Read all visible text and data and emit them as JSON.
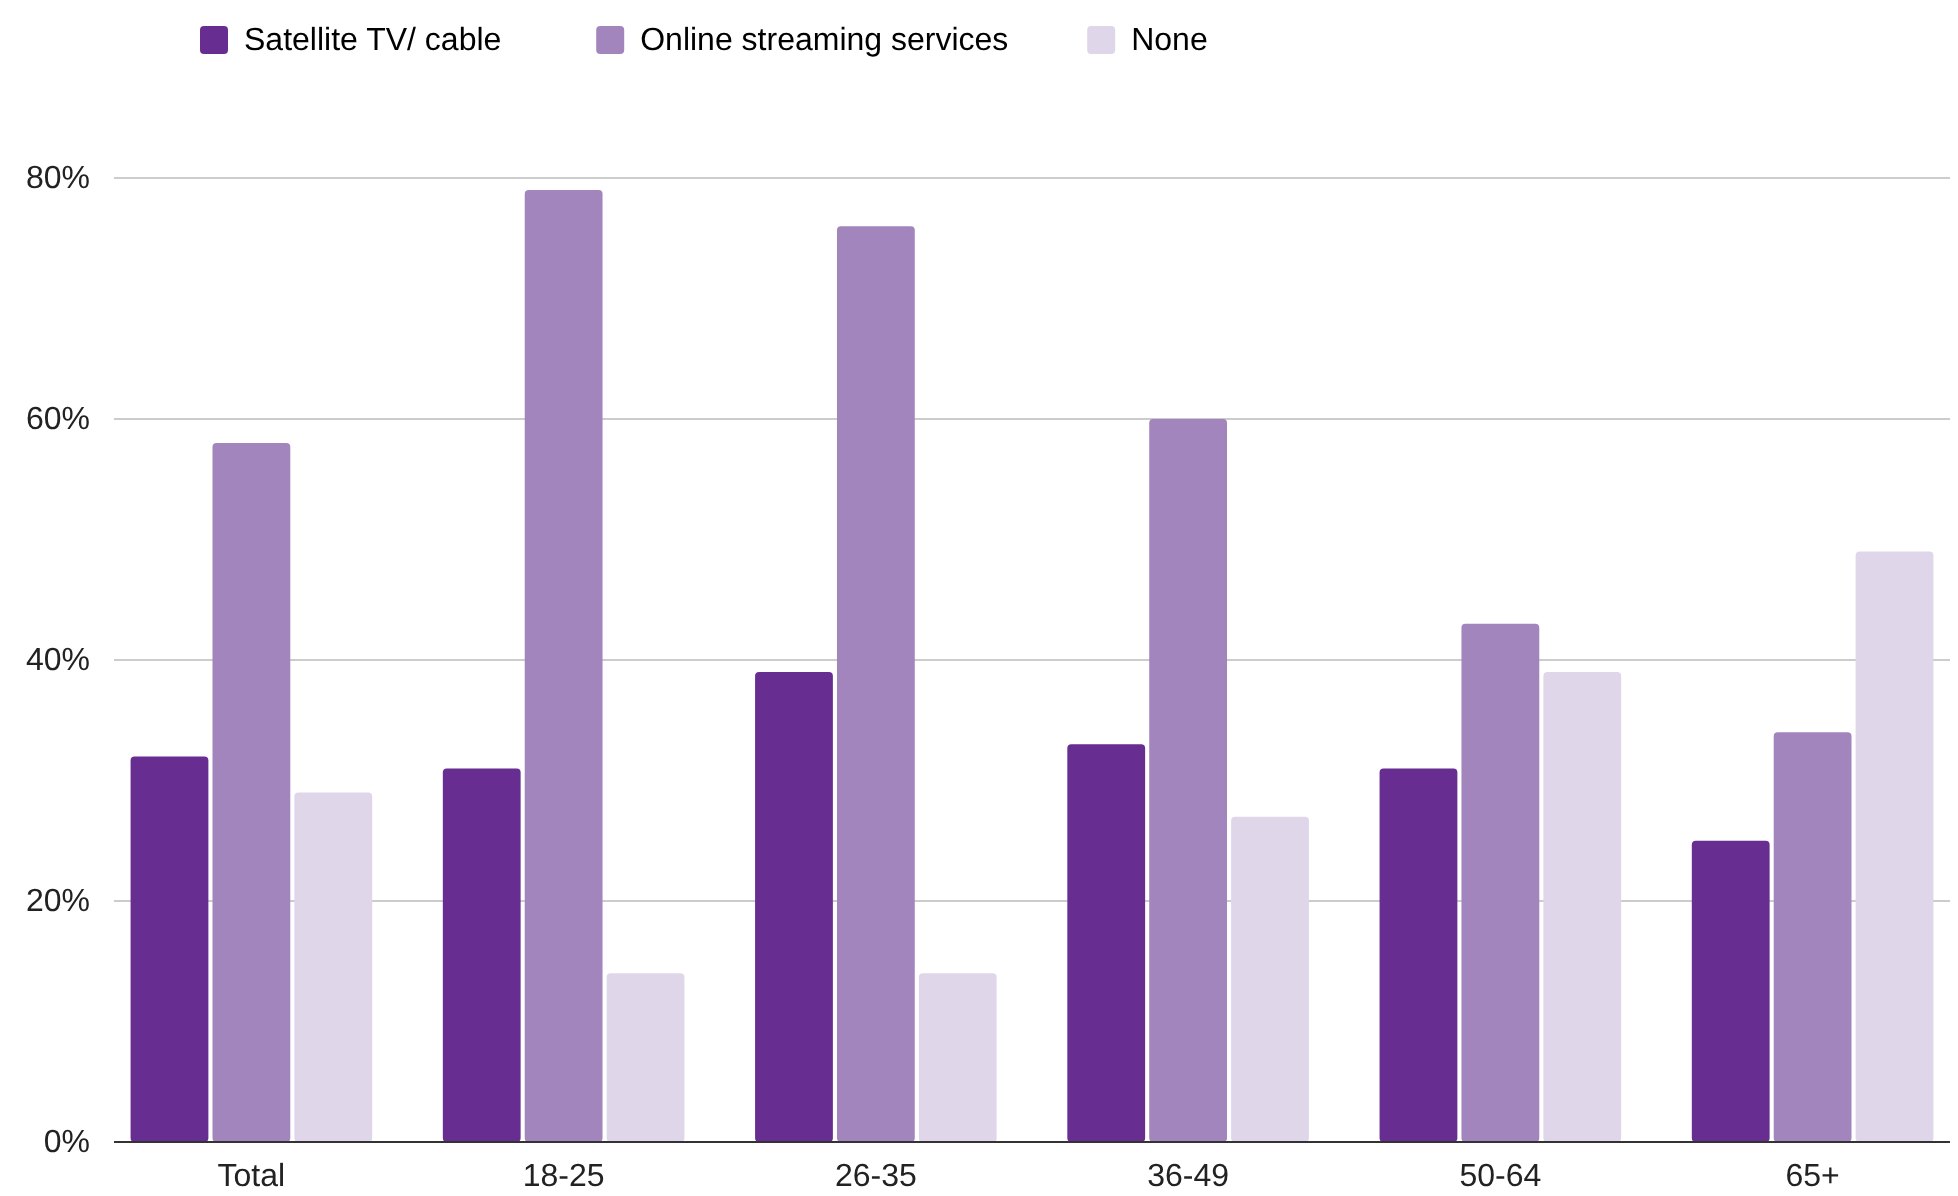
{
  "chart_data": {
    "type": "bar",
    "categories": [
      "Total",
      "18-25",
      "26-35",
      "36-49",
      "50-64",
      "65+"
    ],
    "series": [
      {
        "name": "Satellite TV/ cable",
        "color": "#672d91",
        "values": [
          32,
          31,
          39,
          33,
          31,
          25
        ]
      },
      {
        "name": "Online streaming services",
        "color": "#a385be",
        "values": [
          58,
          79,
          76,
          60,
          43,
          34
        ]
      },
      {
        "name": "None",
        "color": "#e0d6ea",
        "values": [
          29,
          14,
          14,
          27,
          39,
          49
        ]
      }
    ],
    "ylim": [
      0,
      80
    ],
    "yticks": [
      {
        "value": 0,
        "label": "0%"
      },
      {
        "value": 20,
        "label": "20%"
      },
      {
        "value": 40,
        "label": "40%"
      },
      {
        "value": 60,
        "label": "60%"
      },
      {
        "value": 80,
        "label": "80%"
      }
    ],
    "grid": "y",
    "legend": "top left"
  }
}
